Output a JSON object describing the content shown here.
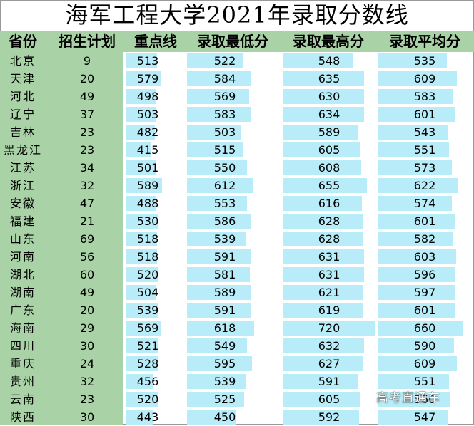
{
  "title": "海军工程大学2021年录取分数线",
  "headers": [
    "省份",
    "招生计划",
    "重点线",
    "录取最低分",
    "录取最高分",
    "录取平均分"
  ],
  "rows": [
    {
      "province": "北京",
      "plan": "9",
      "key_line": "513",
      "min": "522",
      "max": "548",
      "avg": "535"
    },
    {
      "province": "天津",
      "plan": "20",
      "key_line": "579",
      "min": "584",
      "max": "635",
      "avg": "609"
    },
    {
      "province": "河北",
      "plan": "49",
      "key_line": "498",
      "min": "569",
      "max": "630",
      "avg": "583"
    },
    {
      "province": "辽宁",
      "plan": "37",
      "key_line": "503",
      "min": "583",
      "max": "634",
      "avg": "601"
    },
    {
      "province": "吉林",
      "plan": "23",
      "key_line": "482",
      "min": "503",
      "max": "589",
      "avg": "543"
    },
    {
      "province": "黑龙江",
      "plan": "23",
      "key_line": "415",
      "min": "515",
      "max": "605",
      "avg": "551"
    },
    {
      "province": "江苏",
      "plan": "34",
      "key_line": "501",
      "min": "550",
      "max": "608",
      "avg": "573"
    },
    {
      "province": "浙江",
      "plan": "32",
      "key_line": "589",
      "min": "612",
      "max": "655",
      "avg": "622"
    },
    {
      "province": "安徽",
      "plan": "47",
      "key_line": "488",
      "min": "553",
      "max": "616",
      "avg": "574"
    },
    {
      "province": "福建",
      "plan": "21",
      "key_line": "530",
      "min": "586",
      "max": "628",
      "avg": "601"
    },
    {
      "province": "山东",
      "plan": "69",
      "key_line": "518",
      "min": "539",
      "max": "628",
      "avg": "582"
    },
    {
      "province": "河南",
      "plan": "56",
      "key_line": "518",
      "min": "591",
      "max": "631",
      "avg": "603"
    },
    {
      "province": "湖北",
      "plan": "60",
      "key_line": "520",
      "min": "581",
      "max": "631",
      "avg": "596"
    },
    {
      "province": "湖南",
      "plan": "49",
      "key_line": "504",
      "min": "589",
      "max": "621",
      "avg": "597"
    },
    {
      "province": "广东",
      "plan": "20",
      "key_line": "539",
      "min": "591",
      "max": "619",
      "avg": "601"
    },
    {
      "province": "海南",
      "plan": "29",
      "key_line": "569",
      "min": "618",
      "max": "720",
      "avg": "660"
    },
    {
      "province": "四川",
      "plan": "30",
      "key_line": "521",
      "min": "549",
      "max": "632",
      "avg": "590"
    },
    {
      "province": "重庆",
      "plan": "24",
      "key_line": "528",
      "min": "595",
      "max": "627",
      "avg": "609"
    },
    {
      "province": "贵州",
      "plan": "32",
      "key_line": "456",
      "min": "539",
      "max": "591",
      "avg": "551"
    },
    {
      "province": "云南",
      "plan": "23",
      "key_line": "520",
      "min": "525",
      "max": "605",
      "avg": "560"
    },
    {
      "province": "陕西",
      "plan": "30",
      "key_line": "443",
      "min": "450",
      "max": "592",
      "avg": "547"
    }
  ],
  "watermark": "高考直通车",
  "colors": {
    "header_green": "#a9d3a6",
    "bar_blue": "#b7ecf8"
  }
}
